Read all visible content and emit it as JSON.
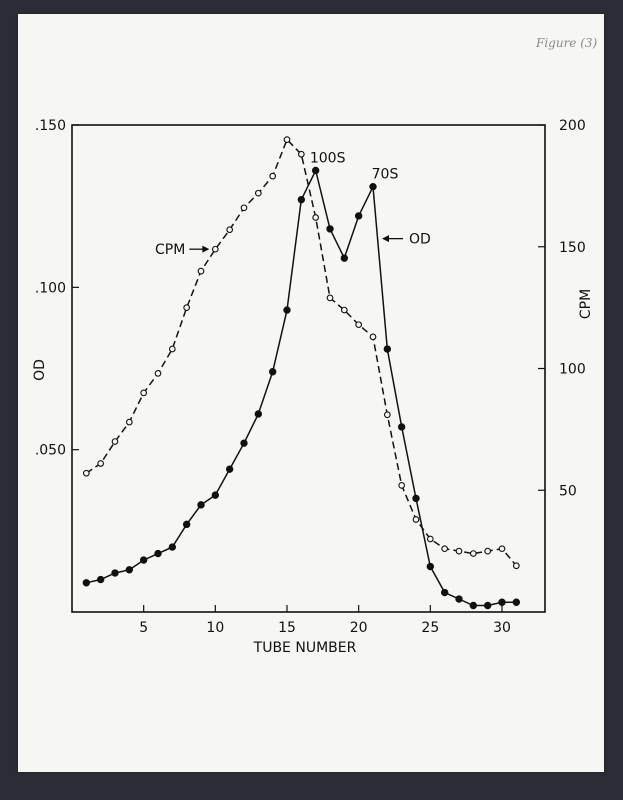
{
  "figure_note": "Figure (3)",
  "chart_data": {
    "type": "line",
    "xlabel": "TUBE NUMBER",
    "ylabel_left": "OD",
    "ylabel_right": "CPM",
    "xlim": [
      0,
      33
    ],
    "ylim_left": [
      0,
      0.15
    ],
    "ylim_right": [
      0,
      200
    ],
    "x_ticks": [
      5,
      10,
      15,
      20,
      25,
      30
    ],
    "x_tick_labels": [
      "5",
      "10",
      "15",
      "20",
      "25",
      "30"
    ],
    "y_left_ticks": [
      0.05,
      0.1,
      0.15
    ],
    "y_left_tick_labels": [
      ".050",
      ".100",
      ".150"
    ],
    "y_right_ticks": [
      50,
      100,
      150,
      200
    ],
    "y_right_tick_labels": [
      "50",
      "100",
      "150",
      "200"
    ],
    "grid": false,
    "series": [
      {
        "name": "OD",
        "axis": "left",
        "style": "solid",
        "marker": "filled",
        "x": [
          1,
          2,
          3,
          4,
          5,
          6,
          7,
          8,
          9,
          10,
          11,
          12,
          13,
          14,
          15,
          16,
          17,
          18,
          19,
          20,
          21,
          22,
          23,
          24,
          25,
          26,
          27,
          28,
          29,
          30,
          31
        ],
        "y": [
          0.009,
          0.01,
          0.012,
          0.013,
          0.016,
          0.018,
          0.02,
          0.027,
          0.033,
          0.036,
          0.044,
          0.052,
          0.061,
          0.074,
          0.093,
          0.127,
          0.136,
          0.118,
          0.109,
          0.122,
          0.131,
          0.081,
          0.057,
          0.035,
          0.014,
          0.006,
          0.004,
          0.002,
          0.002,
          0.003,
          0.003
        ]
      },
      {
        "name": "CPM",
        "axis": "right",
        "style": "dashed",
        "marker": "open",
        "x": [
          1,
          2,
          3,
          4,
          5,
          6,
          7,
          8,
          9,
          10,
          11,
          12,
          13,
          14,
          15,
          16,
          17,
          18,
          19,
          20,
          21,
          22,
          23,
          24,
          25,
          26,
          27,
          28,
          29,
          30,
          31
        ],
        "y": [
          57,
          61,
          70,
          78,
          90,
          98,
          108,
          125,
          140,
          149,
          157,
          166,
          172,
          179,
          194,
          188,
          162,
          129,
          124,
          118,
          113,
          81,
          52,
          38,
          30,
          26,
          25,
          24,
          25,
          26,
          19
        ]
      }
    ],
    "annotations": [
      {
        "text": "100S",
        "x": 17,
        "y": 0.136,
        "axis": "left"
      },
      {
        "text": "70S",
        "x": 21,
        "y": 0.131,
        "axis": "left"
      },
      {
        "text": "CPM",
        "x": 10,
        "y": 149,
        "axis": "right",
        "arrow": "right"
      },
      {
        "text": "OD",
        "x": 21,
        "y": 0.115,
        "axis": "left",
        "arrow": "left"
      }
    ]
  }
}
